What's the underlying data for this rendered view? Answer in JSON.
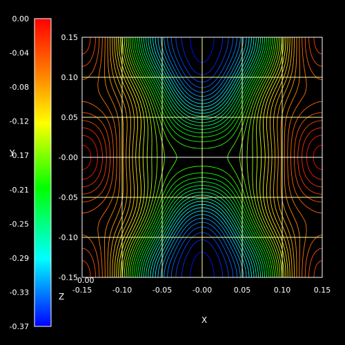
{
  "chart_data": {
    "type": "contour",
    "title": "",
    "xlabel": "X",
    "ylabel": "Y",
    "zlabel": "Z",
    "x_range": [
      -0.15,
      0.15
    ],
    "y_range": [
      -0.15,
      0.15
    ],
    "x_ticks": [
      "-0.15",
      "-0.10",
      "-0.05",
      "-0.00",
      "0.05",
      "0.10",
      "0.15"
    ],
    "y_ticks": [
      "0.15",
      "0.10",
      "0.05",
      "-0.00",
      "-0.05",
      "-0.10",
      "-0.15"
    ],
    "colorbar": {
      "range": [
        -0.37,
        0.0
      ],
      "ticks": [
        "0.00",
        "-0.04",
        "-0.08",
        "-0.12",
        "-0.17",
        "-0.21",
        "-0.25",
        "-0.29",
        "-0.33",
        "-0.37"
      ],
      "colormap": "rainbow: red (max) → orange → yellow → green → cyan → blue (min)"
    },
    "corner_label": "0.00",
    "grid": true,
    "grid_color": "#ffff99",
    "background": "#000000"
  }
}
